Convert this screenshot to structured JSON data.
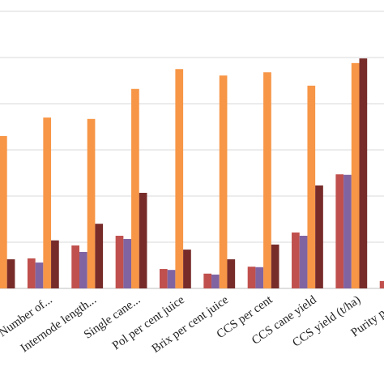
{
  "chart_data": {
    "type": "bar",
    "categories": [
      null,
      "Number of...",
      "Internode length...",
      "Single cane...",
      "Pol per cent juice",
      "Brix per cent juice",
      "CCS per cent",
      "CCS cane yield",
      "CCS yield (t/ha)",
      "Purity per ce"
    ],
    "series": [
      {
        "color": "#c0504d",
        "values": [
          null,
          0.65,
          0.93,
          1.14,
          0.42,
          0.32,
          0.47,
          1.21,
          2.47,
          0.16
        ]
      },
      {
        "color": "#8064a2",
        "values": [
          null,
          0.56,
          0.79,
          1.07,
          0.4,
          0.3,
          0.46,
          1.14,
          2.46,
          null
        ]
      },
      {
        "color": "#f79646",
        "values": [
          3.3,
          3.7,
          3.67,
          4.32,
          4.75,
          4.61,
          4.68,
          4.39,
          4.88,
          null
        ]
      },
      {
        "color": "#772c2a",
        "values": [
          0.63,
          1.04,
          1.4,
          2.07,
          0.84,
          0.63,
          0.95,
          2.23,
          4.98,
          null
        ]
      }
    ],
    "ylim": [
      0,
      6
    ],
    "yticks": [
      0,
      1,
      2,
      3,
      4,
      5,
      6
    ],
    "grid": true
  }
}
